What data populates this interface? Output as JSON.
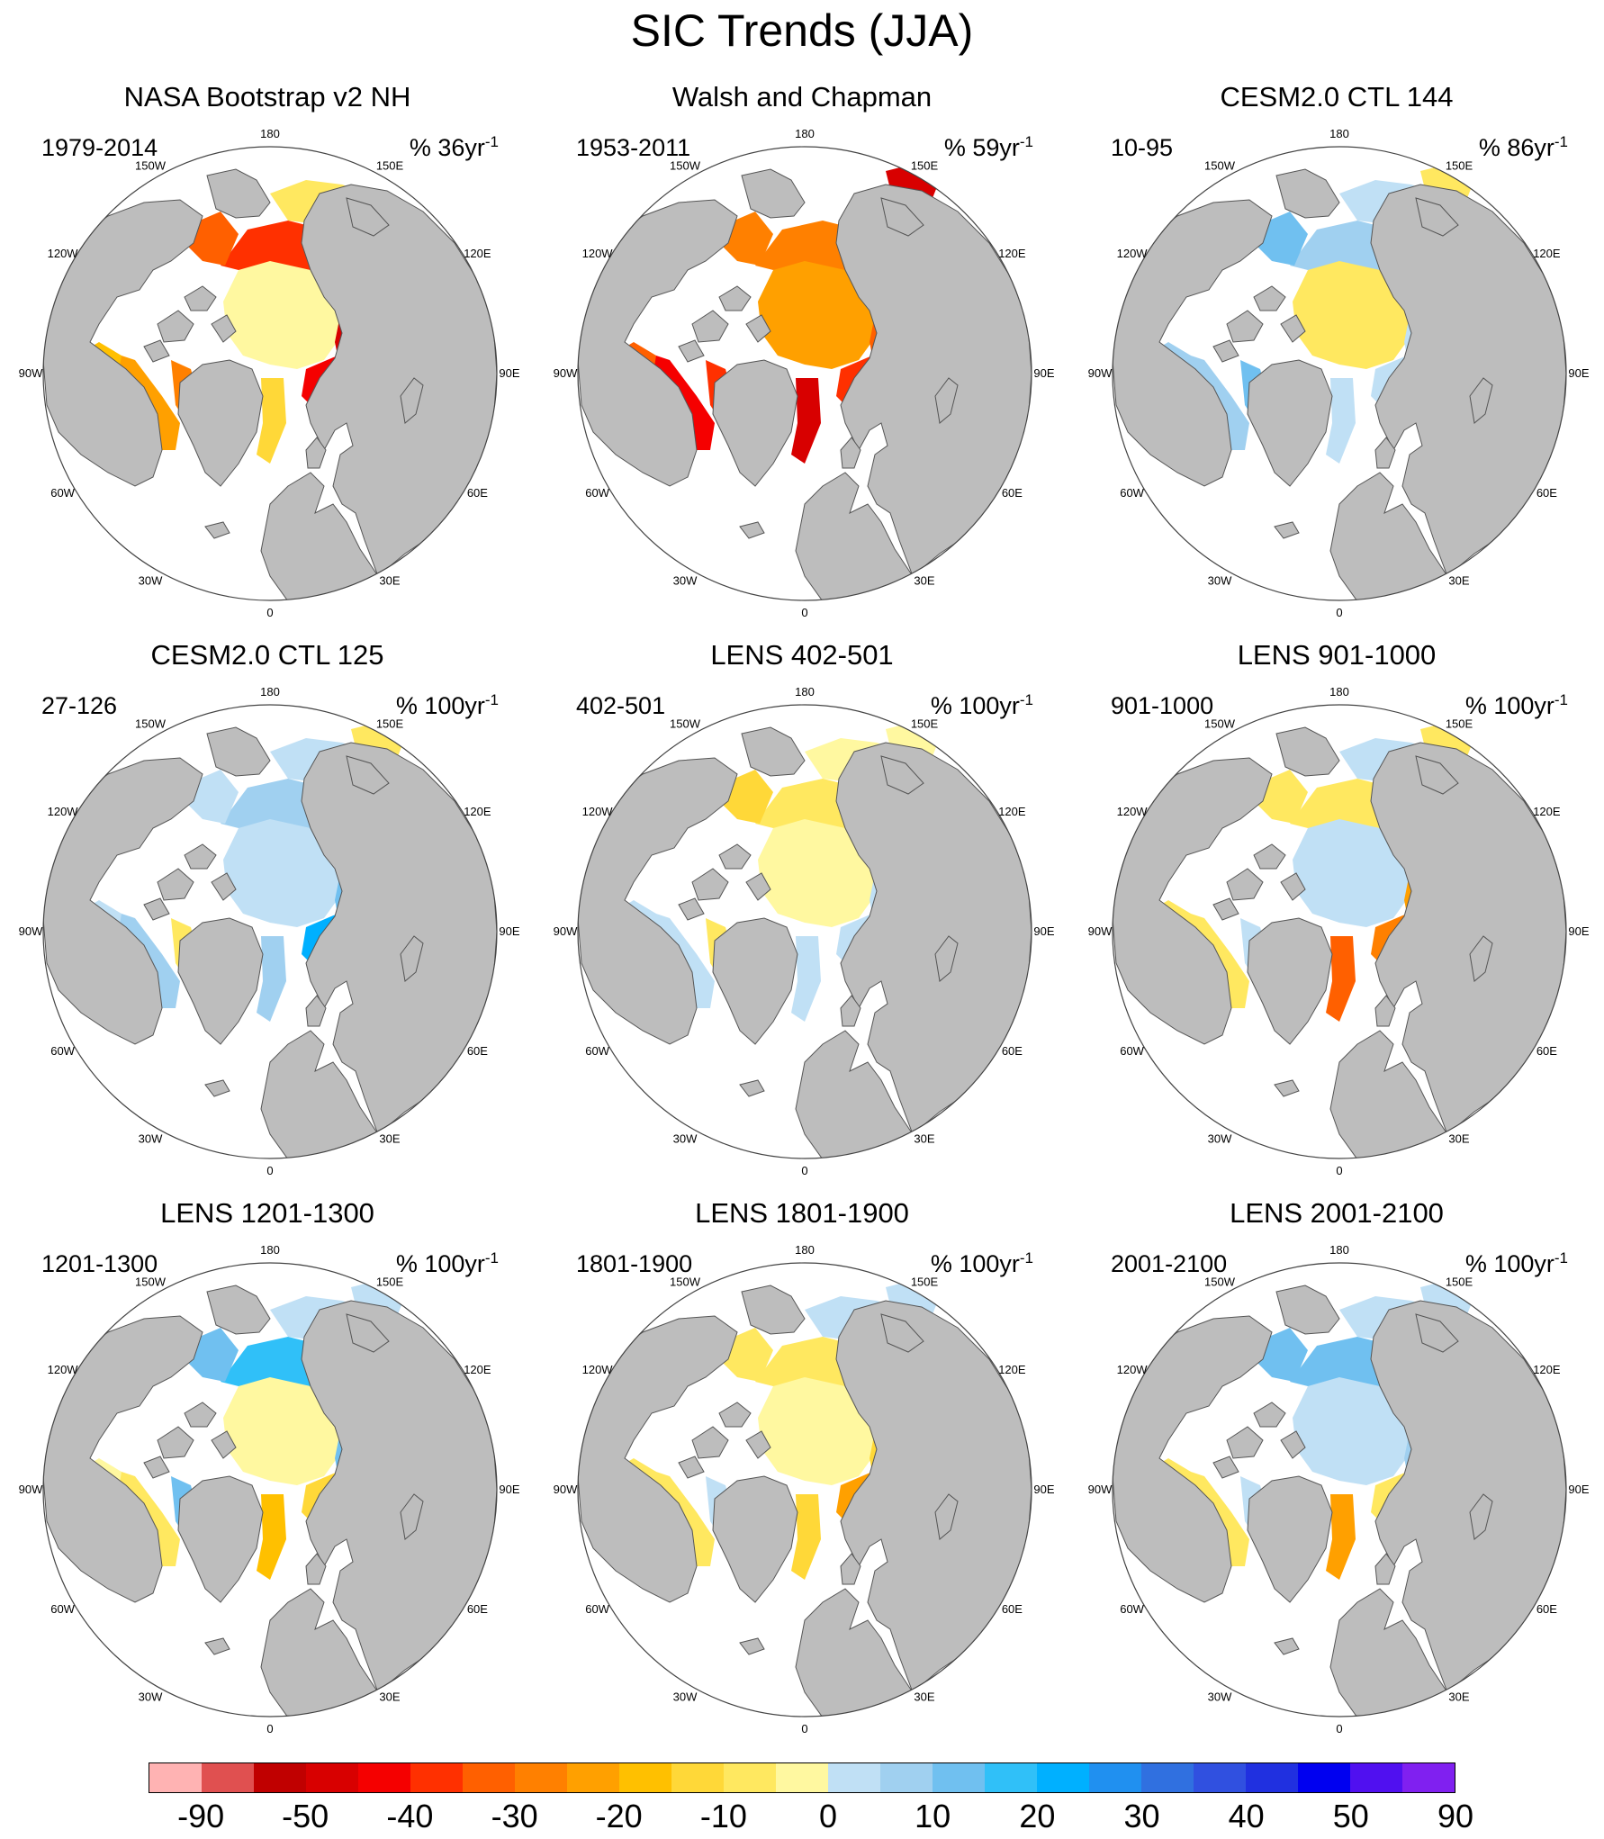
{
  "title": "SIC Trends (JJA)",
  "lon_labels": [
    "180",
    "150E",
    "120E",
    "90E",
    "60E",
    "30E",
    "0",
    "30W",
    "60W",
    "90W",
    "120W",
    "150W"
  ],
  "colors": {
    "land": "#bdbdbd",
    "ocean": "#ffffff",
    "outline": "#555555"
  },
  "panels": [
    {
      "title": "NASA Bootstrap v2 NH",
      "period": "1979-2014",
      "units_prefix": "% 36yr",
      "units_exp": "-1",
      "pattern": "obs-nasa"
    },
    {
      "title": "Walsh and Chapman",
      "period": "1953-2011",
      "units_prefix": "% 59yr",
      "units_exp": "-1",
      "pattern": "obs-walsh"
    },
    {
      "title": "CESM2.0 CTL 144",
      "period": "10-95",
      "units_prefix": "% 86yr",
      "units_exp": "-1",
      "pattern": "light-blue"
    },
    {
      "title": "CESM2.0 CTL 125",
      "period": "27-126",
      "units_prefix": "% 100yr",
      "units_exp": "-1",
      "pattern": "blue-mix"
    },
    {
      "title": "LENS 402-501",
      "period": "402-501",
      "units_prefix": "% 100yr",
      "units_exp": "-1",
      "pattern": "yellow-center"
    },
    {
      "title": "LENS 901-1000",
      "period": "901-1000",
      "units_prefix": "% 100yr",
      "units_exp": "-1",
      "pattern": "orange-barents"
    },
    {
      "title": "LENS 1201-1300",
      "period": "1201-1300",
      "units_prefix": "% 100yr",
      "units_exp": "-1",
      "pattern": "blue-top"
    },
    {
      "title": "LENS 1801-1900",
      "period": "1801-1900",
      "units_prefix": "% 100yr",
      "units_exp": "-1",
      "pattern": "yellow-center2"
    },
    {
      "title": "LENS 2001-2100",
      "period": "2001-2100",
      "units_prefix": "% 100yr",
      "units_exp": "-1",
      "pattern": "blue-top2"
    }
  ],
  "colorbar": {
    "colors": [
      "#ffb3b3",
      "#e05050",
      "#c00000",
      "#d80000",
      "#f50000",
      "#ff3000",
      "#ff6000",
      "#ff8000",
      "#ffa000",
      "#ffc000",
      "#ffd838",
      "#ffe860",
      "#fff8a0",
      "#c0e0f5",
      "#a0d0f0",
      "#70c0f0",
      "#30c0f8",
      "#00b0ff",
      "#2090f0",
      "#3070e0",
      "#3050e0",
      "#2030e0",
      "#0000f0",
      "#5010f0",
      "#8020f0"
    ],
    "labels": [
      "-90",
      "-50",
      "-40",
      "-30",
      "-20",
      "-10",
      "0",
      "10",
      "20",
      "30",
      "40",
      "50",
      "90"
    ]
  }
}
